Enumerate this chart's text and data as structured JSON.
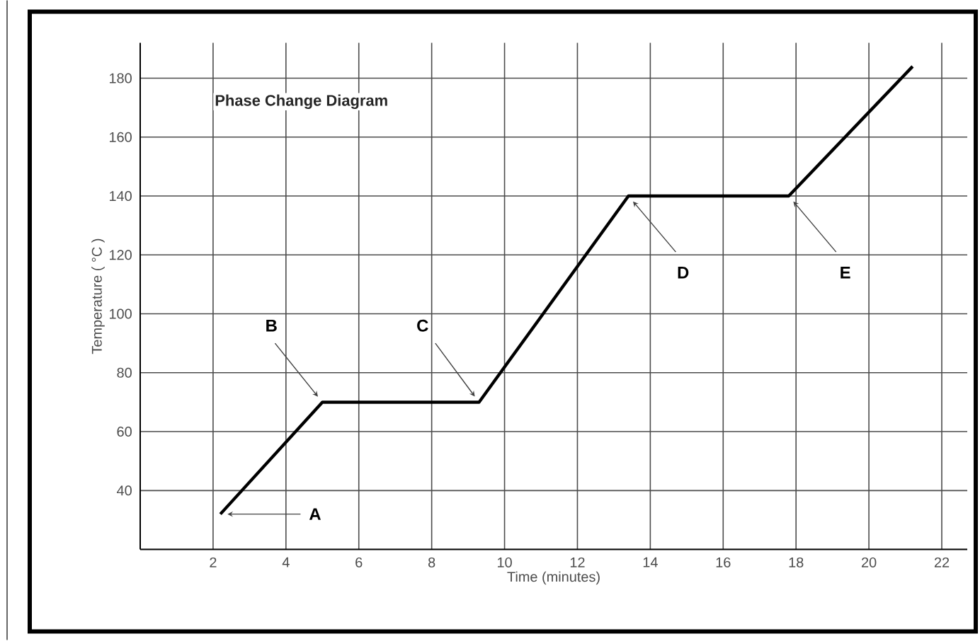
{
  "chart_data": {
    "type": "line",
    "title": "Phase Change Diagram",
    "xlabel": "Time (minutes)",
    "ylabel": "Temperature ( °C )",
    "x": [
      2.2,
      5,
      9.3,
      13.4,
      17.8,
      21.2
    ],
    "values": [
      32,
      70,
      70,
      140,
      140,
      184
    ],
    "color": "#000000",
    "xlim": [
      0,
      22.7
    ],
    "ylim": [
      20,
      192
    ],
    "xticks": [
      2,
      4,
      6,
      8,
      10,
      12,
      14,
      16,
      18,
      20,
      22
    ],
    "yticks": [
      40,
      60,
      80,
      100,
      120,
      140,
      160,
      180
    ],
    "grid": true,
    "marker": "none",
    "line_style": "solid",
    "annotations": [
      {
        "text": "A",
        "x": 2.2,
        "y": 32
      },
      {
        "text": "B",
        "x": 5,
        "y": 70
      },
      {
        "text": "C",
        "x": 9.3,
        "y": 70
      },
      {
        "text": "D",
        "x": 13.4,
        "y": 140
      },
      {
        "text": "E",
        "x": 17.8,
        "y": 140
      }
    ]
  }
}
